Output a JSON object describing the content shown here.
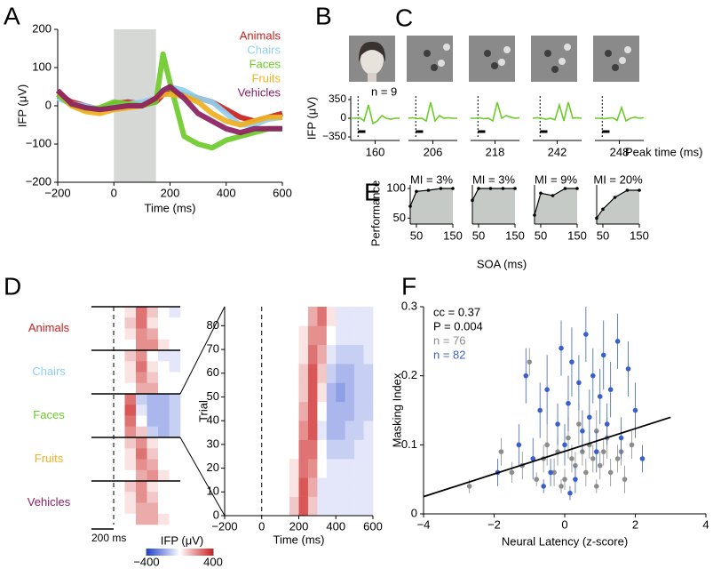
{
  "chart_data": [
    {
      "type": "line",
      "panel": "A",
      "xlabel": "Time (ms)",
      "ylabel": "IFP (μV)",
      "x": [
        -200,
        -150,
        -100,
        -50,
        0,
        50,
        100,
        150,
        175,
        200,
        250,
        300,
        350,
        400,
        450,
        500,
        550,
        600
      ],
      "xlim": [
        -200,
        600
      ],
      "xticks": [
        {
          "value": -200,
          "label": "−200"
        },
        0,
        200,
        400,
        600
      ],
      "ylim": [
        -200,
        200
      ],
      "yticks": [
        {
          "value": -200,
          "label": "−200"
        },
        {
          "value": -100,
          "label": "−100"
        },
        0,
        100,
        200
      ],
      "shade": [
        0,
        150
      ],
      "series": [
        {
          "name": "Animals",
          "color": "#c8201e",
          "values": [
            30,
            10,
            0,
            -10,
            5,
            10,
            5,
            10,
            30,
            40,
            30,
            20,
            10,
            -10,
            -30,
            -40,
            -30,
            -20
          ]
        },
        {
          "name": "Chairs",
          "color": "#8fd0f0",
          "values": [
            20,
            5,
            0,
            -10,
            0,
            5,
            10,
            20,
            40,
            50,
            40,
            20,
            10,
            -20,
            -50,
            -50,
            -35,
            -30
          ]
        },
        {
          "name": "Faces",
          "color": "#6ccb2a",
          "values": [
            30,
            0,
            -10,
            -5,
            10,
            5,
            0,
            10,
            135,
            60,
            -80,
            -100,
            -110,
            -90,
            -80,
            -70,
            -60,
            -60
          ]
        },
        {
          "name": "Fruits",
          "color": "#f0b020",
          "values": [
            40,
            0,
            -15,
            -20,
            -10,
            -5,
            0,
            20,
            30,
            30,
            25,
            10,
            -20,
            -40,
            -50,
            -40,
            -30,
            -30
          ]
        },
        {
          "name": "Vehicles",
          "color": "#8b2060",
          "values": [
            40,
            5,
            -5,
            -10,
            -5,
            0,
            0,
            20,
            40,
            50,
            20,
            -20,
            -40,
            -60,
            -70,
            -60,
            -60,
            -60
          ]
        }
      ]
    },
    {
      "type": "traces",
      "panel_labels": [
        "B",
        "C"
      ],
      "ylabel": "IFP (μV)",
      "annotation": "n = 9",
      "xlabel": "Peak time (ms)",
      "ylim": [
        -350,
        350
      ],
      "yticks": [
        350,
        0,
        {
          "value": -350,
          "label": "−350"
        }
      ],
      "color": "#6ccb2a",
      "peak_times": [
        160,
        206,
        218,
        242,
        248
      ],
      "traces": [
        [
          0,
          0,
          10,
          -50,
          250,
          -100,
          -50,
          50,
          0,
          -20,
          0,
          0
        ],
        [
          0,
          10,
          -10,
          0,
          -50,
          300,
          -50,
          50,
          0,
          10,
          0,
          0
        ],
        [
          0,
          0,
          10,
          -10,
          0,
          -50,
          300,
          0,
          50,
          20,
          0,
          10
        ],
        [
          0,
          10,
          0,
          -20,
          0,
          -30,
          250,
          -50,
          300,
          0,
          10,
          0
        ],
        [
          0,
          0,
          -10,
          0,
          10,
          -40,
          200,
          -50,
          0,
          20,
          0,
          10
        ]
      ]
    },
    {
      "type": "small-multiples",
      "panel": "E",
      "xlabel": "SOA (ms)",
      "ylabel": "Performance",
      "x": [
        33,
        50,
        83,
        117,
        150
      ],
      "xlim": [
        33,
        150
      ],
      "xticks": [
        50,
        150
      ],
      "ylim": [
        40,
        100
      ],
      "yticks": [
        50,
        100
      ],
      "series": [
        {
          "name": "MI = 3%",
          "values": [
            70,
            95,
            97,
            100,
            100
          ]
        },
        {
          "name": "MI = 3%",
          "values": [
            80,
            100,
            100,
            100,
            100
          ]
        },
        {
          "name": "MI = 9%",
          "values": [
            55,
            92,
            88,
            100,
            100
          ]
        },
        {
          "name": "MI = 20%",
          "values": [
            50,
            65,
            85,
            97,
            97
          ]
        }
      ]
    },
    {
      "type": "heatmap",
      "panel": "D",
      "scale_bar": "200 ms",
      "xlabel": "Time (ms)",
      "ylabel": "Trial",
      "colorbar_label": "IFP (μV)",
      "colorbar_ticks": [
        {
          "value": -400,
          "label": "−400"
        },
        400
      ],
      "xlim": [
        -200,
        600
      ],
      "xticks": [
        {
          "value": -200,
          "label": "−200"
        },
        0,
        200,
        400,
        600
      ],
      "ylim": [
        0,
        88
      ],
      "yticks": [
        0,
        10,
        20,
        30,
        40,
        50,
        60,
        70,
        80
      ],
      "groups": [
        {
          "name": "Animals",
          "color": "#c8201e",
          "values": [
            [
              0,
              0,
              0,
              50,
              250,
              100,
              0,
              -50
            ],
            [
              0,
              0,
              0,
              100,
              250,
              50,
              0,
              0
            ],
            [
              0,
              0,
              0,
              50,
              200,
              150,
              0,
              0
            ],
            [
              0,
              0,
              0,
              0,
              200,
              200,
              50,
              0
            ]
          ]
        },
        {
          "name": "Chairs",
          "color": "#8fd0f0",
          "values": [
            [
              0,
              0,
              0,
              100,
              200,
              0,
              -50,
              -50
            ],
            [
              0,
              0,
              0,
              50,
              250,
              50,
              0,
              -50
            ],
            [
              0,
              0,
              0,
              50,
              200,
              100,
              0,
              0
            ],
            [
              0,
              0,
              0,
              0,
              150,
              150,
              0,
              0
            ]
          ]
        },
        {
          "name": "Faces",
          "color": "#6ccb2a",
          "values": [
            [
              0,
              0,
              0,
              250,
              -100,
              -150,
              -150,
              -100
            ],
            [
              0,
              0,
              0,
              300,
              -50,
              -150,
              -150,
              -100
            ],
            [
              0,
              0,
              0,
              250,
              0,
              -150,
              -150,
              -100
            ],
            [
              0,
              0,
              0,
              200,
              100,
              -100,
              -150,
              -100
            ]
          ]
        },
        {
          "name": "Fruits",
          "color": "#f0b020",
          "values": [
            [
              0,
              0,
              0,
              100,
              200,
              50,
              0,
              0
            ],
            [
              0,
              0,
              0,
              50,
              250,
              100,
              0,
              0
            ],
            [
              0,
              0,
              0,
              50,
              200,
              150,
              0,
              0
            ],
            [
              0,
              0,
              0,
              0,
              150,
              200,
              50,
              0
            ]
          ]
        },
        {
          "name": "Vehicles",
          "color": "#8b2060",
          "values": [
            [
              0,
              0,
              0,
              100,
              200,
              50,
              0,
              0
            ],
            [
              0,
              0,
              0,
              50,
              200,
              100,
              0,
              0
            ],
            [
              0,
              0,
              0,
              50,
              150,
              150,
              0,
              0
            ],
            [
              0,
              0,
              0,
              0,
              150,
              150,
              50,
              0
            ]
          ]
        }
      ],
      "matrix": [
        [
          0,
          0,
          0,
          0,
          0,
          0,
          0,
          100,
          300,
          100,
          -50,
          -50,
          -50,
          -50,
          -50,
          -50
        ],
        [
          0,
          0,
          0,
          0,
          0,
          0,
          0,
          50,
          300,
          150,
          -50,
          -50,
          -50,
          -50,
          -50,
          -50
        ],
        [
          0,
          0,
          0,
          0,
          0,
          0,
          0,
          50,
          250,
          200,
          0,
          -50,
          -50,
          -50,
          -50,
          -50
        ],
        [
          0,
          0,
          0,
          0,
          0,
          0,
          0,
          0,
          250,
          250,
          0,
          -100,
          -100,
          -100,
          -50,
          -50
        ],
        [
          0,
          0,
          0,
          0,
          0,
          0,
          0,
          0,
          200,
          300,
          -50,
          -150,
          -150,
          -100,
          -100,
          -50
        ],
        [
          0,
          0,
          0,
          0,
          0,
          0,
          0,
          0,
          150,
          300,
          0,
          -150,
          -150,
          -150,
          -100,
          -100
        ],
        [
          0,
          0,
          0,
          0,
          0,
          0,
          0,
          0,
          100,
          300,
          50,
          -150,
          -200,
          -150,
          -100,
          -100
        ],
        [
          0,
          0,
          0,
          0,
          0,
          0,
          0,
          0,
          100,
          300,
          100,
          -100,
          -150,
          -150,
          -100,
          -100
        ],
        [
          0,
          0,
          0,
          0,
          0,
          0,
          0,
          0,
          50,
          250,
          150,
          -50,
          -100,
          -100,
          -100,
          -50
        ],
        [
          0,
          0,
          0,
          0,
          0,
          0,
          0,
          0,
          50,
          200,
          200,
          0,
          -50,
          -50,
          -50,
          -50
        ],
        [
          0,
          0,
          0,
          0,
          0,
          0,
          0,
          0,
          0,
          150,
          250,
          50,
          -50,
          -50,
          -50,
          -50
        ]
      ]
    },
    {
      "type": "scatter",
      "panel": "F",
      "xlabel": "Neural Latency (z-score)",
      "ylabel": "Masking Index",
      "annotations": [
        "cc = 0.37",
        "P = 0.004"
      ],
      "xlim": [
        -4,
        4
      ],
      "xticks": [
        {
          "value": -4,
          "label": "−4"
        },
        {
          "value": -2,
          "label": "−2"
        },
        0,
        2,
        4
      ],
      "ylim": [
        0,
        0.3
      ],
      "yticks": [
        0,
        0.1,
        0.2,
        0.3
      ],
      "fit": {
        "x": [
          -4,
          3
        ],
        "y": [
          0.025,
          0.14
        ]
      },
      "series": [
        {
          "name": "n = 76",
          "color": "#8c8c8c",
          "x": [
            -2.7,
            -1.8,
            -1.5,
            -1.2,
            -1,
            -0.8,
            -0.6,
            -0.5,
            -0.3,
            -0.2,
            0,
            0.1,
            0.2,
            0.3,
            0.4,
            0.5,
            0.6,
            0.7,
            0.8,
            0.9,
            1,
            1.1,
            1.2,
            1.3,
            1.5,
            1.7,
            1.9,
            -0.1,
            0.9,
            1.6
          ],
          "values": [
            0.04,
            0.09,
            0.06,
            0.07,
            0.22,
            0.05,
            0.08,
            0.1,
            0.06,
            0.09,
            0.05,
            0.11,
            0.08,
            0.07,
            0.13,
            0.09,
            0.06,
            0.1,
            0.08,
            0.12,
            0.07,
            0.09,
            0.11,
            0.06,
            0.08,
            0.05,
            0.1,
            0.04,
            0.04,
            0.09
          ],
          "errors": [
            0.01,
            0.02,
            0.015,
            0.02,
            0.02,
            0.01,
            0.02,
            0.03,
            0.02,
            0.02,
            0.015,
            0.03,
            0.02,
            0.02,
            0.03,
            0.02,
            0.02,
            0.02,
            0.02,
            0.03,
            0.02,
            0.02,
            0.03,
            0.02,
            0.02,
            0.02,
            0.02,
            0.01,
            0.01,
            0.02
          ]
        },
        {
          "name": "n = 82",
          "color": "#3a5fcd",
          "x": [
            -1.9,
            -1.3,
            -1.1,
            -0.9,
            -0.7,
            -0.5,
            -0.4,
            -0.2,
            -0.1,
            0,
            0.1,
            0.2,
            0.3,
            0.4,
            0.5,
            0.6,
            0.7,
            0.8,
            0.9,
            1,
            1.1,
            1.2,
            1.3,
            1.5,
            1.6,
            1.8,
            2,
            2.2,
            -0.6,
            0.15
          ],
          "values": [
            0.06,
            0.1,
            0.2,
            0.08,
            0.15,
            0.18,
            0.06,
            0.13,
            0.24,
            0.1,
            0.16,
            0.22,
            0.05,
            0.19,
            0.12,
            0.26,
            0.14,
            0.2,
            0.09,
            0.17,
            0.23,
            0.13,
            0.18,
            0.25,
            0.11,
            0.21,
            0.15,
            0.08,
            0.04,
            0.03
          ],
          "errors": [
            0.02,
            0.03,
            0.04,
            0.03,
            0.04,
            0.05,
            0.02,
            0.03,
            0.04,
            0.03,
            0.04,
            0.05,
            0.02,
            0.04,
            0.03,
            0.04,
            0.04,
            0.04,
            0.03,
            0.04,
            0.05,
            0.03,
            0.04,
            0.04,
            0.03,
            0.04,
            0.04,
            0.02,
            0.01,
            0.01
          ]
        }
      ]
    }
  ]
}
